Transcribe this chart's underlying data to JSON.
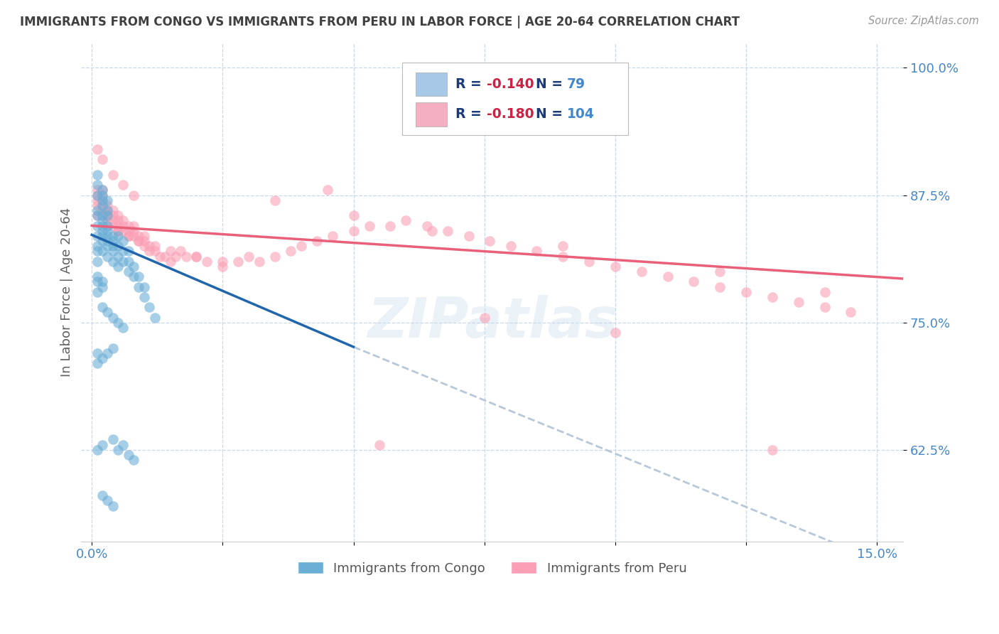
{
  "title": "IMMIGRANTS FROM CONGO VS IMMIGRANTS FROM PERU IN LABOR FORCE | AGE 20-64 CORRELATION CHART",
  "source": "Source: ZipAtlas.com",
  "ylabel": "In Labor Force | Age 20-64",
  "ytick_labels": [
    "100.0%",
    "87.5%",
    "75.0%",
    "62.5%"
  ],
  "ytick_values": [
    1.0,
    0.875,
    0.75,
    0.625
  ],
  "xlim": [
    -0.002,
    0.155
  ],
  "ylim": [
    0.535,
    1.025
  ],
  "congo_color": "#6baed6",
  "peru_color": "#fa9fb5",
  "congo_line_color": "#2166ac",
  "peru_line_color": "#e8607a",
  "trendline_extend_color": "#b8c8d8",
  "background_color": "#ffffff",
  "watermark": "ZIPatlas",
  "grid_color": "#c8d8e8",
  "title_color": "#404040",
  "axis_label_color": "#4488cc",
  "legend_label_color": "#1a3a7a",
  "legend_R_color": "#cc2244",
  "congo_legend_color": "#a8c8e8",
  "peru_legend_color": "#f4b0c0",
  "congo_x": [
    0.001,
    0.001,
    0.001,
    0.001,
    0.001,
    0.001,
    0.001,
    0.002,
    0.002,
    0.002,
    0.002,
    0.002,
    0.002,
    0.002,
    0.003,
    0.003,
    0.003,
    0.003,
    0.003,
    0.003,
    0.004,
    0.004,
    0.004,
    0.004,
    0.004,
    0.005,
    0.005,
    0.005,
    0.005,
    0.006,
    0.006,
    0.006,
    0.007,
    0.007,
    0.007,
    0.008,
    0.008,
    0.009,
    0.009,
    0.01,
    0.01,
    0.011,
    0.012,
    0.001,
    0.002,
    0.002,
    0.003,
    0.003,
    0.001,
    0.001,
    0.002,
    0.003,
    0.004,
    0.001,
    0.002,
    0.004,
    0.005,
    0.006,
    0.007,
    0.008,
    0.002,
    0.003,
    0.004,
    0.002,
    0.003,
    0.004,
    0.005,
    0.006,
    0.001,
    0.002,
    0.001,
    0.001,
    0.002,
    0.002,
    0.003,
    0.001,
    0.001,
    0.002
  ],
  "congo_y": [
    0.855,
    0.845,
    0.835,
    0.82,
    0.81,
    0.825,
    0.86,
    0.855,
    0.845,
    0.835,
    0.82,
    0.83,
    0.84,
    0.85,
    0.845,
    0.835,
    0.825,
    0.815,
    0.83,
    0.84,
    0.83,
    0.82,
    0.81,
    0.825,
    0.835,
    0.815,
    0.805,
    0.825,
    0.835,
    0.81,
    0.82,
    0.83,
    0.8,
    0.81,
    0.82,
    0.795,
    0.805,
    0.785,
    0.795,
    0.775,
    0.785,
    0.765,
    0.755,
    0.875,
    0.87,
    0.865,
    0.86,
    0.855,
    0.72,
    0.71,
    0.715,
    0.72,
    0.725,
    0.625,
    0.63,
    0.635,
    0.625,
    0.63,
    0.62,
    0.615,
    0.58,
    0.575,
    0.57,
    0.765,
    0.76,
    0.755,
    0.75,
    0.745,
    0.795,
    0.79,
    0.885,
    0.895,
    0.88,
    0.875,
    0.87,
    0.79,
    0.78,
    0.785
  ],
  "peru_x": [
    0.001,
    0.001,
    0.001,
    0.001,
    0.001,
    0.002,
    0.002,
    0.002,
    0.002,
    0.002,
    0.002,
    0.003,
    0.003,
    0.003,
    0.003,
    0.003,
    0.004,
    0.004,
    0.004,
    0.004,
    0.005,
    0.005,
    0.005,
    0.005,
    0.006,
    0.006,
    0.006,
    0.007,
    0.007,
    0.007,
    0.008,
    0.008,
    0.008,
    0.009,
    0.009,
    0.01,
    0.01,
    0.01,
    0.011,
    0.011,
    0.012,
    0.013,
    0.014,
    0.015,
    0.016,
    0.017,
    0.018,
    0.02,
    0.022,
    0.025,
    0.028,
    0.03,
    0.032,
    0.035,
    0.038,
    0.04,
    0.043,
    0.046,
    0.05,
    0.053,
    0.057,
    0.06,
    0.064,
    0.068,
    0.072,
    0.076,
    0.08,
    0.085,
    0.09,
    0.095,
    0.1,
    0.105,
    0.11,
    0.115,
    0.12,
    0.125,
    0.13,
    0.135,
    0.14,
    0.145,
    0.003,
    0.005,
    0.007,
    0.009,
    0.012,
    0.015,
    0.02,
    0.025,
    0.001,
    0.002,
    0.004,
    0.006,
    0.008,
    0.035,
    0.05,
    0.065,
    0.09,
    0.12,
    0.14,
    0.055,
    0.075,
    0.1,
    0.13,
    0.045
  ],
  "peru_y": [
    0.87,
    0.875,
    0.88,
    0.855,
    0.865,
    0.86,
    0.865,
    0.87,
    0.855,
    0.875,
    0.88,
    0.855,
    0.86,
    0.865,
    0.845,
    0.85,
    0.85,
    0.855,
    0.845,
    0.86,
    0.845,
    0.85,
    0.855,
    0.84,
    0.845,
    0.85,
    0.84,
    0.84,
    0.845,
    0.835,
    0.835,
    0.84,
    0.845,
    0.835,
    0.83,
    0.83,
    0.835,
    0.825,
    0.825,
    0.82,
    0.82,
    0.815,
    0.815,
    0.81,
    0.815,
    0.82,
    0.815,
    0.815,
    0.81,
    0.805,
    0.81,
    0.815,
    0.81,
    0.815,
    0.82,
    0.825,
    0.83,
    0.835,
    0.84,
    0.845,
    0.845,
    0.85,
    0.845,
    0.84,
    0.835,
    0.83,
    0.825,
    0.82,
    0.815,
    0.81,
    0.805,
    0.8,
    0.795,
    0.79,
    0.785,
    0.78,
    0.775,
    0.77,
    0.765,
    0.76,
    0.855,
    0.84,
    0.835,
    0.83,
    0.825,
    0.82,
    0.815,
    0.81,
    0.92,
    0.91,
    0.895,
    0.885,
    0.875,
    0.87,
    0.855,
    0.84,
    0.825,
    0.8,
    0.78,
    0.63,
    0.755,
    0.74,
    0.625,
    0.88
  ]
}
